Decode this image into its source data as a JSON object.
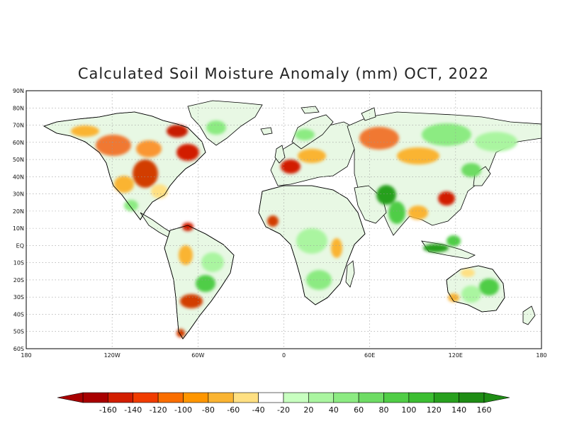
{
  "title": "Calculated Soil Moisture Anomaly (mm) OCT, 2022",
  "lat_labels": [
    "90N",
    "80N",
    "70N",
    "60N",
    "50N",
    "40N",
    "30N",
    "20N",
    "10N",
    "EQ",
    "10S",
    "20S",
    "30S",
    "40S",
    "50S",
    "60S"
  ],
  "lon_labels": [
    "180",
    "120W",
    "60W",
    "0",
    "60E",
    "120E",
    "180"
  ],
  "colorbar": {
    "tick_labels": [
      "-160",
      "-140",
      "-120",
      "-100",
      "-80",
      "-60",
      "-40",
      "-20",
      "20",
      "40",
      "60",
      "80",
      "100",
      "120",
      "140",
      "160"
    ],
    "colors": [
      "#a80000",
      "#d21e00",
      "#f03c00",
      "#fa6e00",
      "#ff9600",
      "#fab432",
      "#ffe082",
      "#ffffff",
      "#c8ffc0",
      "#aaf5a0",
      "#8ceb82",
      "#6edc64",
      "#50cd46",
      "#3cbe32",
      "#28a01e",
      "#1e8c14"
    ],
    "under_color": "#a80000",
    "over_color": "#1e8c14"
  }
}
